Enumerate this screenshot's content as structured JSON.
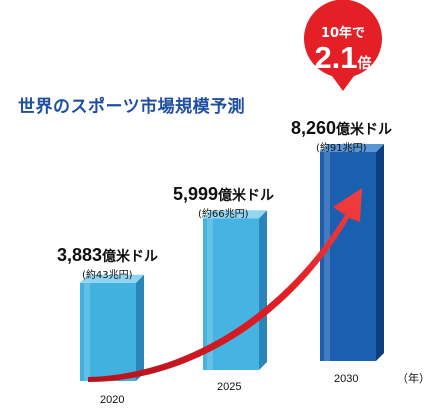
{
  "title": "世界のスポーツ市場規模予測",
  "callout": {
    "top": "10年で",
    "value": "2.1",
    "suffix": "倍"
  },
  "x_unit": "（年）",
  "colors": {
    "bar_light": "#41b2e0",
    "bar_dark": "#1a5fb0",
    "arrow": "#e41f26",
    "title": "#1f4fa0"
  },
  "chart_data": {
    "type": "bar",
    "title": "世界のスポーツ市場規模予測",
    "categories": [
      "2020",
      "2025",
      "2030"
    ],
    "values": [
      3883,
      5999,
      8260
    ],
    "value_labels": [
      "3,883",
      "5,999",
      "8,260"
    ],
    "unit": "億米ドル",
    "sub_labels": [
      "(約43兆円)",
      "(約66兆円)",
      "(約91兆円)"
    ],
    "x_unit": "（年）",
    "growth_annotation": "10年で2.1倍"
  }
}
